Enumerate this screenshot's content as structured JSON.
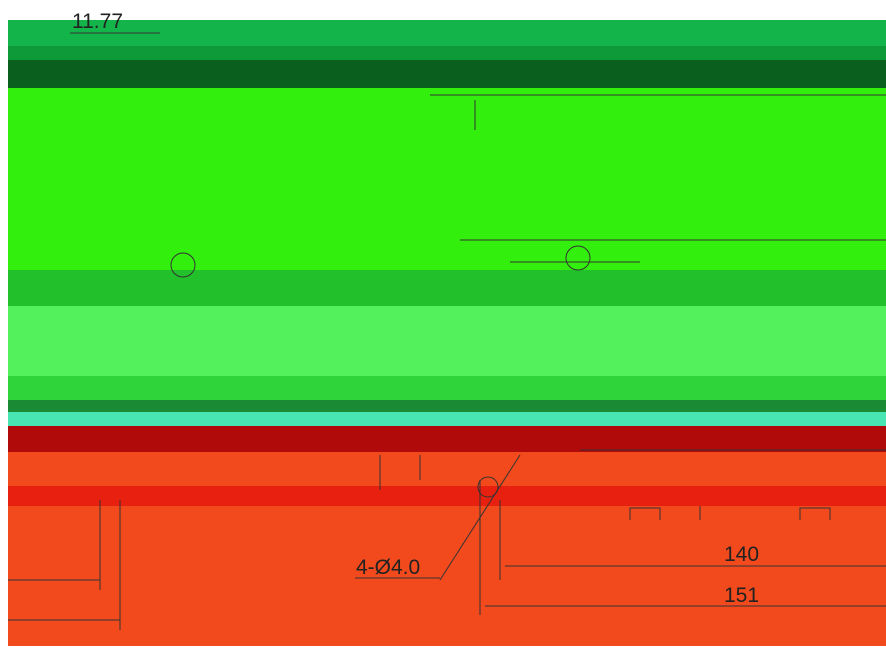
{
  "dimensions": {
    "top": "11.77",
    "hole": "4-Ø4.0",
    "inner_width": "140",
    "outer_width": "151"
  }
}
